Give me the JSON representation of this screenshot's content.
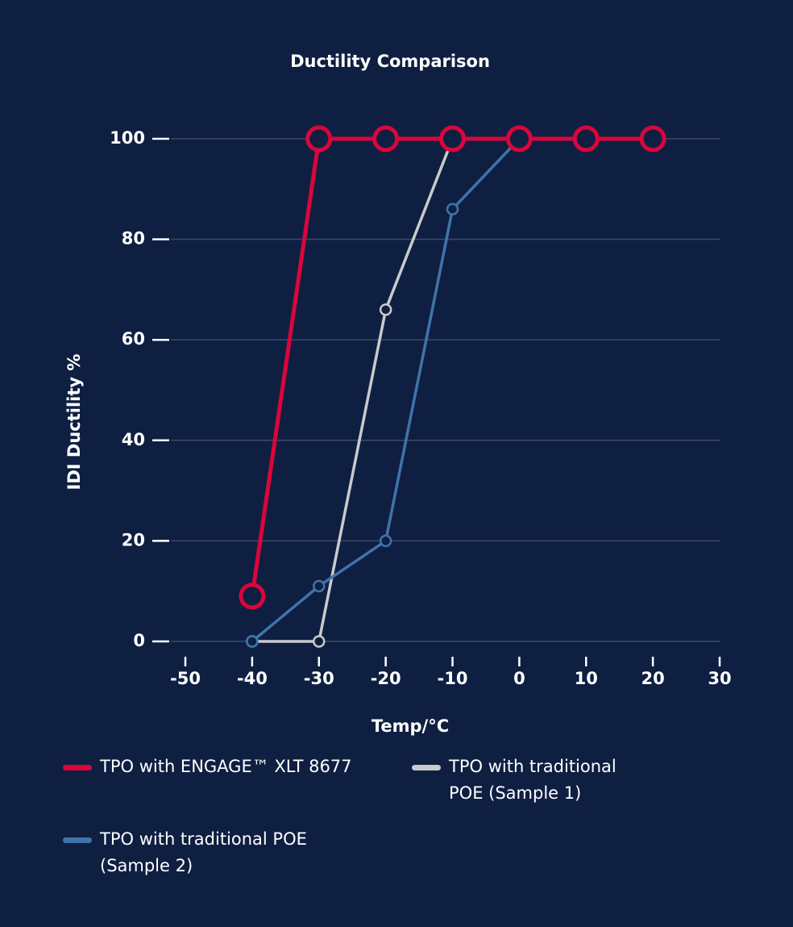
{
  "chart_data": {
    "type": "line",
    "title": "Ductility Comparison",
    "x_label": "Temp/°C",
    "y_label": "IDI Ductility %",
    "x": [
      -40,
      -30,
      -20,
      -10,
      0,
      10,
      20
    ],
    "series": [
      {
        "name": "TPO with ENGAGE™ XLT 8677",
        "color": "#d9063b",
        "values": [
          9,
          100,
          100,
          100,
          100,
          100,
          100
        ]
      },
      {
        "name": "TPO with traditional POE (Sample 1)",
        "color": "#c9cacd",
        "values": [
          0,
          0,
          66,
          100,
          null,
          null,
          null
        ]
      },
      {
        "name": "TPO with traditional POE (Sample 2)",
        "color": "#3f74aa",
        "values": [
          0,
          11,
          20,
          86,
          100,
          null,
          null
        ]
      }
    ],
    "xlim": [
      -50,
      30
    ],
    "xticks": [
      -50,
      -40,
      -30,
      -20,
      -10,
      0,
      10,
      20,
      30
    ],
    "ylim": [
      0,
      100
    ],
    "yticks": [
      0,
      20,
      40,
      60,
      80,
      100
    ],
    "grid": true
  }
}
